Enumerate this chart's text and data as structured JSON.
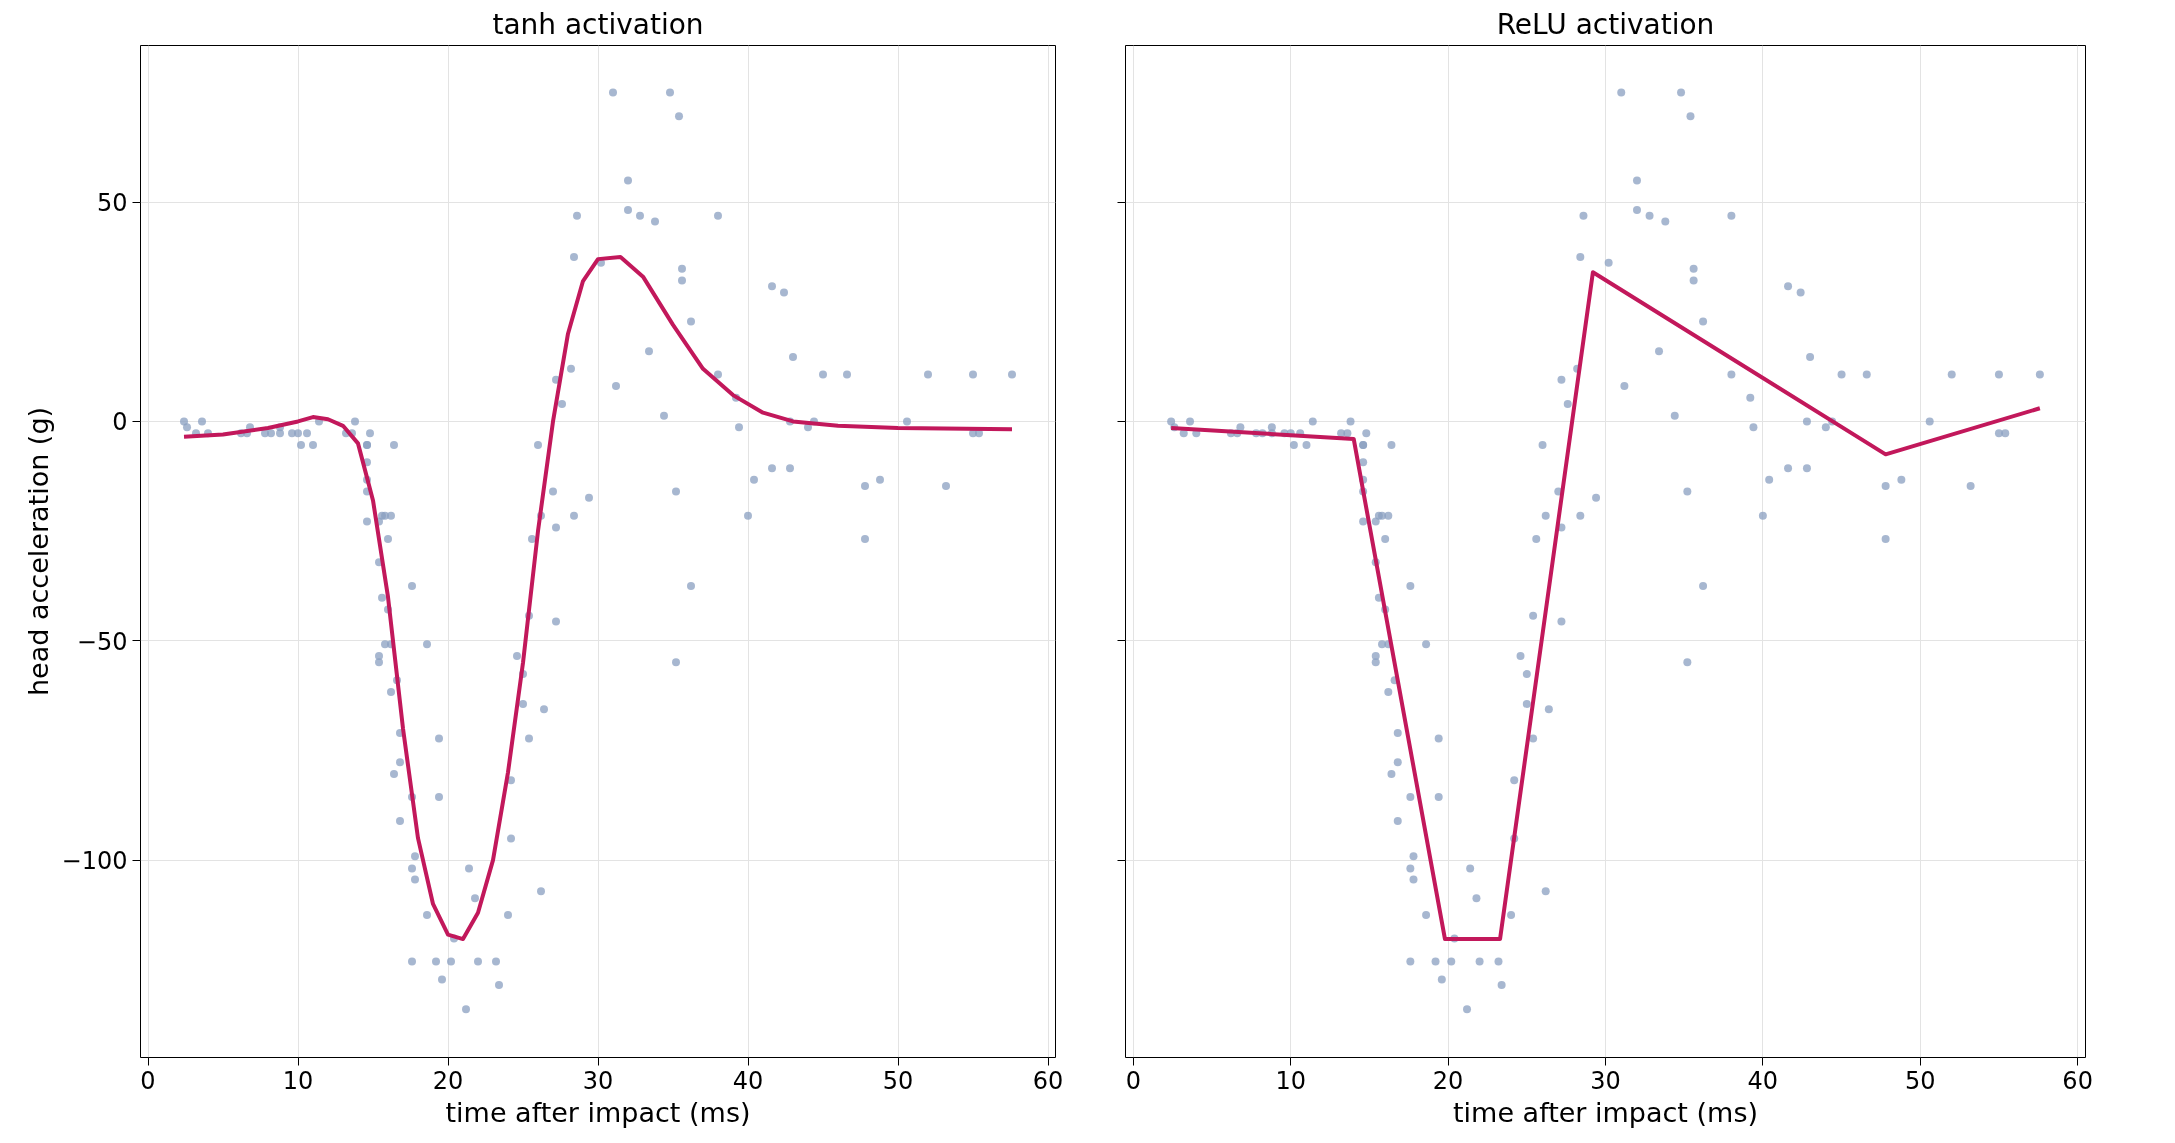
{
  "chart_data": [
    {
      "type": "scatter",
      "title": "tanh activation",
      "xlabel": "time after impact (ms)",
      "ylabel": "head acceleration (g)",
      "xlim": [
        -0.5,
        60.5
      ],
      "ylim": [
        -145,
        85.7
      ],
      "xticks": [
        0,
        10,
        20,
        30,
        40,
        50,
        60
      ],
      "yticks": [
        {
          "value": -100,
          "label": "−100"
        },
        {
          "value": -50,
          "label": "−50"
        },
        0,
        50
      ],
      "grid": true,
      "series": [
        {
          "marker": "circle",
          "color": "#8a9fc0",
          "x": [
            2.4,
            2.6,
            3.2,
            3.6,
            4.0,
            6.2,
            6.6,
            6.8,
            7.8,
            8.2,
            8.8,
            8.8,
            9.6,
            10.0,
            10.2,
            10.6,
            11.0,
            11.4,
            13.2,
            13.6,
            13.8,
            14.6,
            14.6,
            14.6,
            14.6,
            14.6,
            14.6,
            14.8,
            15.4,
            15.4,
            15.4,
            15.4,
            15.6,
            15.6,
            15.8,
            15.8,
            16.0,
            16.0,
            16.2,
            16.2,
            16.2,
            16.4,
            16.4,
            16.6,
            16.8,
            16.8,
            16.8,
            17.6,
            17.6,
            17.6,
            17.6,
            17.8,
            17.8,
            18.6,
            18.6,
            19.2,
            19.4,
            19.4,
            19.6,
            20.2,
            20.4,
            21.2,
            21.4,
            21.8,
            22.0,
            23.2,
            23.4,
            24.0,
            24.2,
            24.2,
            24.6,
            25.0,
            25.0,
            25.4,
            25.4,
            25.6,
            26.0,
            26.2,
            26.2,
            26.4,
            27.0,
            27.2,
            27.2,
            27.2,
            27.6,
            28.2,
            28.4,
            28.4,
            28.6,
            29.4,
            30.2,
            31.0,
            31.2,
            32.0,
            32.0,
            32.8,
            33.4,
            33.8,
            34.4,
            34.8,
            35.2,
            35.2,
            35.4,
            35.6,
            35.6,
            36.2,
            36.2,
            38.0,
            38.0,
            39.2,
            39.4,
            40.0,
            40.4,
            41.6,
            41.6,
            42.4,
            42.8,
            42.8,
            43.0,
            44.0,
            44.4,
            45.0,
            46.6,
            47.8,
            47.8,
            48.8,
            50.6,
            52.0,
            53.2,
            55.0,
            55.0,
            55.4,
            57.6
          ],
          "values": [
            0.0,
            -1.3,
            -2.7,
            0.0,
            -2.7,
            -2.7,
            -2.7,
            -1.3,
            -2.7,
            -2.7,
            -1.3,
            -2.7,
            -2.7,
            -2.7,
            -5.4,
            -2.7,
            -5.4,
            0.0,
            -2.7,
            -2.7,
            0.0,
            -13.3,
            -5.4,
            -5.4,
            -9.3,
            -16.0,
            -22.8,
            -2.7,
            -22.8,
            -32.1,
            -53.5,
            -54.9,
            -40.2,
            -21.5,
            -21.5,
            -50.8,
            -42.9,
            -26.8,
            -21.5,
            -50.8,
            -61.7,
            -5.4,
            -80.4,
            -59.0,
            -71.0,
            -91.1,
            -77.7,
            -37.5,
            -85.6,
            -123.1,
            -101.9,
            -99.1,
            -104.4,
            -112.5,
            -50.8,
            -123.1,
            -85.6,
            -72.3,
            -127.2,
            -123.1,
            -117.9,
            -134.0,
            -101.9,
            -108.7,
            -123.1,
            -123.1,
            -128.5,
            -112.5,
            -95.1,
            -81.8,
            -53.5,
            -64.4,
            -57.6,
            -72.3,
            -44.3,
            -26.8,
            -5.4,
            -107.1,
            -21.5,
            -65.6,
            -16.0,
            -45.6,
            -24.2,
            9.5,
            4.0,
            12.0,
            -21.5,
            37.5,
            46.9,
            -17.4,
            36.2,
            75.0,
            8.1,
            54.9,
            48.2,
            46.9,
            16.0,
            45.6,
            1.3,
            75.0,
            -16.0,
            -54.9,
            69.6,
            34.8,
            32.1,
            -37.5,
            22.8,
            46.9,
            10.7,
            5.4,
            -1.3,
            -21.5,
            -13.3,
            30.8,
            -10.7,
            29.4,
            0.0,
            -10.7,
            14.7,
            -1.3,
            0.0,
            10.7,
            10.7,
            -26.8,
            -14.7,
            -13.3,
            0.0,
            10.7,
            -14.7,
            -2.7,
            10.7,
            -2.7,
            10.7
          ]
        },
        {
          "type": "line",
          "color": "#c2185b",
          "x": [
            2.4,
            5,
            8,
            10,
            11,
            12,
            13,
            14,
            15,
            16,
            17,
            18,
            19,
            20,
            21,
            22,
            23,
            24,
            25,
            26,
            27,
            28,
            29,
            30,
            31.5,
            33,
            35,
            37,
            39,
            41,
            43,
            46,
            50,
            57.6
          ],
          "values": [
            -3.5,
            -3,
            -1.5,
            0,
            1,
            0.5,
            -1,
            -5,
            -18,
            -40,
            -70,
            -95,
            -110,
            -117,
            -118,
            -112,
            -100,
            -80,
            -55,
            -25,
            0,
            20,
            32,
            37,
            37.5,
            33,
            22,
            12,
            6,
            2,
            0,
            -1,
            -1.5,
            -1.8
          ]
        }
      ]
    },
    {
      "type": "scatter",
      "title": "ReLU activation",
      "xlabel": "time after impact (ms)",
      "xlim": [
        -0.5,
        60.5
      ],
      "ylim": [
        -145,
        85.7
      ],
      "xticks": [
        0,
        10,
        20,
        30,
        40,
        50,
        60
      ],
      "yticks": [
        {
          "value": -100,
          "label": null
        },
        {
          "value": -50,
          "label": null
        },
        {
          "value": 0,
          "label": null
        },
        {
          "value": 50,
          "label": null
        }
      ],
      "grid": true,
      "tick_labels": "x",
      "series": [
        {
          "marker": "circle",
          "color": "#8a9fc0",
          "x": [
            2.4,
            2.6,
            3.2,
            3.6,
            4.0,
            6.2,
            6.6,
            6.8,
            7.8,
            8.2,
            8.8,
            8.8,
            9.6,
            10.0,
            10.2,
            10.6,
            11.0,
            11.4,
            13.2,
            13.6,
            13.8,
            14.6,
            14.6,
            14.6,
            14.6,
            14.6,
            14.6,
            14.8,
            15.4,
            15.4,
            15.4,
            15.4,
            15.6,
            15.6,
            15.8,
            15.8,
            16.0,
            16.0,
            16.2,
            16.2,
            16.2,
            16.4,
            16.4,
            16.6,
            16.8,
            16.8,
            16.8,
            17.6,
            17.6,
            17.6,
            17.6,
            17.8,
            17.8,
            18.6,
            18.6,
            19.2,
            19.4,
            19.4,
            19.6,
            20.2,
            20.4,
            21.2,
            21.4,
            21.8,
            22.0,
            23.2,
            23.4,
            24.0,
            24.2,
            24.2,
            24.6,
            25.0,
            25.0,
            25.4,
            25.4,
            25.6,
            26.0,
            26.2,
            26.2,
            26.4,
            27.0,
            27.2,
            27.2,
            27.2,
            27.6,
            28.2,
            28.4,
            28.4,
            28.6,
            29.4,
            30.2,
            31.0,
            31.2,
            32.0,
            32.0,
            32.8,
            33.4,
            33.8,
            34.4,
            34.8,
            35.2,
            35.2,
            35.4,
            35.6,
            35.6,
            36.2,
            36.2,
            38.0,
            38.0,
            39.2,
            39.4,
            40.0,
            40.4,
            41.6,
            41.6,
            42.4,
            42.8,
            42.8,
            43.0,
            44.0,
            44.4,
            45.0,
            46.6,
            47.8,
            47.8,
            48.8,
            50.6,
            52.0,
            53.2,
            55.0,
            55.0,
            55.4,
            57.6
          ],
          "values": [
            0.0,
            -1.3,
            -2.7,
            0.0,
            -2.7,
            -2.7,
            -2.7,
            -1.3,
            -2.7,
            -2.7,
            -1.3,
            -2.7,
            -2.7,
            -2.7,
            -5.4,
            -2.7,
            -5.4,
            0.0,
            -2.7,
            -2.7,
            0.0,
            -13.3,
            -5.4,
            -5.4,
            -9.3,
            -16.0,
            -22.8,
            -2.7,
            -22.8,
            -32.1,
            -53.5,
            -54.9,
            -40.2,
            -21.5,
            -21.5,
            -50.8,
            -42.9,
            -26.8,
            -21.5,
            -50.8,
            -61.7,
            -5.4,
            -80.4,
            -59.0,
            -71.0,
            -91.1,
            -77.7,
            -37.5,
            -85.6,
            -123.1,
            -101.9,
            -99.1,
            -104.4,
            -112.5,
            -50.8,
            -123.1,
            -85.6,
            -72.3,
            -127.2,
            -123.1,
            -117.9,
            -134.0,
            -101.9,
            -108.7,
            -123.1,
            -123.1,
            -128.5,
            -112.5,
            -95.1,
            -81.8,
            -53.5,
            -64.4,
            -57.6,
            -72.3,
            -44.3,
            -26.8,
            -5.4,
            -107.1,
            -21.5,
            -65.6,
            -16.0,
            -45.6,
            -24.2,
            9.5,
            4.0,
            12.0,
            -21.5,
            37.5,
            46.9,
            -17.4,
            36.2,
            75.0,
            8.1,
            54.9,
            48.2,
            46.9,
            16.0,
            45.6,
            1.3,
            75.0,
            -16.0,
            -54.9,
            69.6,
            34.8,
            32.1,
            -37.5,
            22.8,
            46.9,
            10.7,
            5.4,
            -1.3,
            -21.5,
            -13.3,
            30.8,
            -10.7,
            29.4,
            0.0,
            -10.7,
            14.7,
            -1.3,
            0.0,
            10.7,
            10.7,
            -26.8,
            -14.7,
            -13.3,
            0.0,
            10.7,
            -14.7,
            -2.7,
            10.7,
            -2.7,
            10.7
          ]
        },
        {
          "type": "line",
          "color": "#c2185b",
          "x": [
            2.4,
            14,
            19.8,
            23.3,
            29.2,
            47.8,
            57.6
          ],
          "values": [
            -1.5,
            -4,
            -118,
            -118,
            34,
            -7.5,
            3
          ]
        }
      ]
    }
  ]
}
